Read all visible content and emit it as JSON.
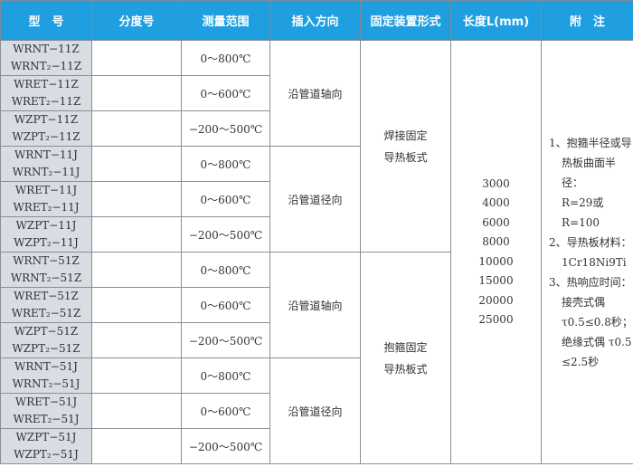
{
  "headers": [
    "型　号",
    "分度号",
    "测量范围",
    "插入方向",
    "固定装置形式",
    "长度L(mm)",
    "附　注"
  ],
  "rows": [
    {
      "models": [
        "WRNT−11Z",
        "WRNT₂−11Z"
      ],
      "range": "0～800℃"
    },
    {
      "models": [
        "WRET−11Z",
        "WRET₂−11Z"
      ],
      "range": "0～600℃"
    },
    {
      "models": [
        "WZPT−11Z",
        "WZPT₂−11Z"
      ],
      "range": "−200～500℃"
    },
    {
      "models": [
        "WRNT−11J",
        "WRNT₂−11J"
      ],
      "range": "0～800℃"
    },
    {
      "models": [
        "WRET−11J",
        "WRET₂−11J"
      ],
      "range": "0～600℃"
    },
    {
      "models": [
        "WZPT−11J",
        "WZPT₂−11J"
      ],
      "range": "−200～500℃"
    },
    {
      "models": [
        "WRNT−51Z",
        "WRNT₂−51Z"
      ],
      "range": "0～800℃"
    },
    {
      "models": [
        "WRET−51Z",
        "WRET₂−51Z"
      ],
      "range": "0～600℃"
    },
    {
      "models": [
        "WZPT−51Z",
        "WZPT₂−51Z"
      ],
      "range": "−200～500℃"
    },
    {
      "models": [
        "WRNT−51J",
        "WRNT₂−51J"
      ],
      "range": "0～800℃"
    },
    {
      "models": [
        "WRET−51J",
        "WRET₂−51J"
      ],
      "range": "0～600℃"
    },
    {
      "models": [
        "WZPT−51J",
        "WZPT₂−51J"
      ],
      "range": "−200～500℃"
    }
  ],
  "directions": [
    "沿管道轴向",
    "沿管道径向",
    "沿管道轴向",
    "沿管道径向"
  ],
  "fixing": [
    [
      "焊接固定",
      "导热板式"
    ],
    [
      "抱箍固定",
      "导热板式"
    ]
  ],
  "lengths": [
    "3000",
    "4000",
    "6000",
    "8000",
    "10000",
    "15000",
    "20000",
    "25000"
  ],
  "notes": [
    "1、抱箍半径或导",
    "热板曲面半径：",
    "R=29或R=100",
    "2、导热板材料：",
    "1Cr18Ni9Ti",
    "3、热响应时间：",
    "接壳式偶",
    "τ0.5≤0.8秒；",
    "绝缘式偶 τ0.5",
    "≤2.5秒"
  ]
}
